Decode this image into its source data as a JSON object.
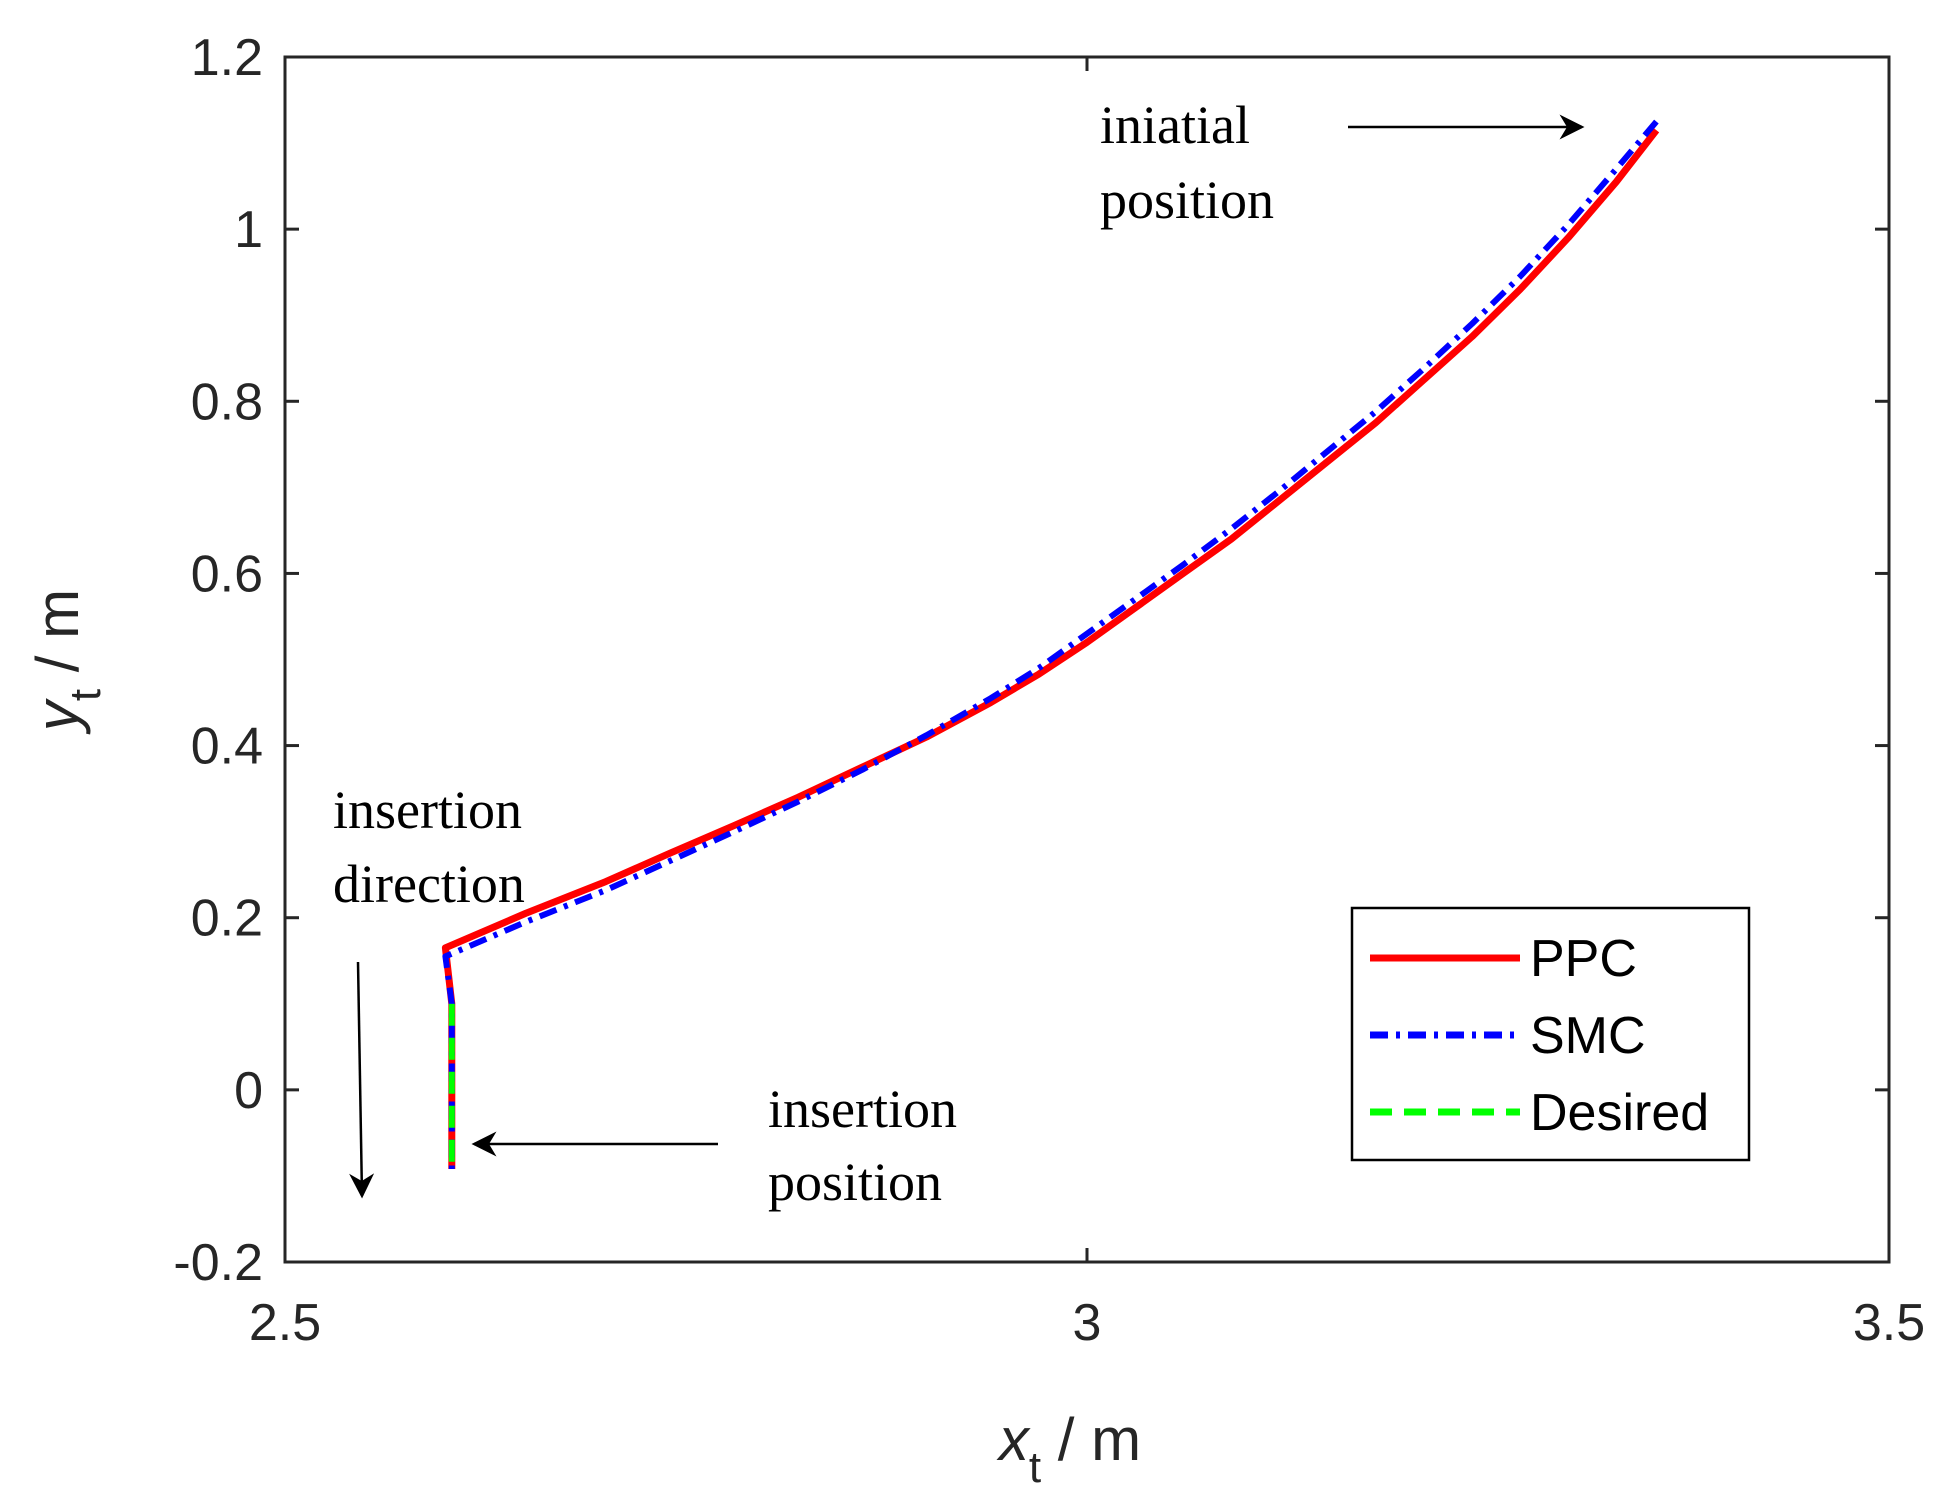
{
  "chart_data": {
    "type": "line",
    "xlabel": {
      "main": "x",
      "sub": "t",
      "unit": " / m"
    },
    "ylabel": {
      "main": "y",
      "sub": "t",
      "unit": " / m"
    },
    "xlim": [
      2.5,
      3.5
    ],
    "ylim": [
      -0.2,
      1.2
    ],
    "xticks": [
      2.5,
      3,
      3.5
    ],
    "xtick_labels": [
      "2.5",
      "3",
      "3.5"
    ],
    "yticks": [
      -0.2,
      0,
      0.2,
      0.4,
      0.6,
      0.8,
      1,
      1.2
    ],
    "ytick_labels": [
      "-0.2",
      "0",
      "0.2",
      "0.4",
      "0.6",
      "0.8",
      "1",
      "1.2"
    ],
    "grid": false,
    "legend_position": "bottom-right",
    "series": [
      {
        "name": "PPC",
        "color": "#ff0000",
        "style": "solid",
        "x": [
          3.355,
          3.33,
          3.3,
          3.27,
          3.24,
          3.21,
          3.18,
          3.15,
          3.12,
          3.09,
          3.06,
          3.03,
          3.0,
          2.97,
          2.94,
          2.9,
          2.86,
          2.82,
          2.78,
          2.74,
          2.7,
          2.65,
          2.6,
          2.604,
          2.604
        ],
        "y": [
          1.115,
          1.055,
          0.99,
          0.93,
          0.875,
          0.825,
          0.775,
          0.73,
          0.685,
          0.64,
          0.6,
          0.56,
          0.52,
          0.483,
          0.45,
          0.41,
          0.375,
          0.34,
          0.307,
          0.275,
          0.242,
          0.205,
          0.165,
          0.1,
          -0.092
        ]
      },
      {
        "name": "SMC",
        "color": "#0000ff",
        "style": "dash-dot",
        "x": [
          3.355,
          3.33,
          3.3,
          3.27,
          3.24,
          3.21,
          3.18,
          3.15,
          3.12,
          3.09,
          3.06,
          3.03,
          3.0,
          2.97,
          2.94,
          2.9,
          2.86,
          2.82,
          2.78,
          2.74,
          2.7,
          2.65,
          2.6,
          2.604,
          2.604
        ],
        "y": [
          1.125,
          1.07,
          1.005,
          0.945,
          0.89,
          0.838,
          0.788,
          0.742,
          0.696,
          0.652,
          0.61,
          0.57,
          0.53,
          0.49,
          0.455,
          0.412,
          0.372,
          0.335,
          0.3,
          0.266,
          0.232,
          0.195,
          0.155,
          0.1,
          -0.092
        ]
      },
      {
        "name": "Desired",
        "color": "#00ff00",
        "style": "dashed",
        "x": [
          2.604,
          2.604
        ],
        "y": [
          0.1,
          -0.092
        ]
      }
    ],
    "annotations": [
      {
        "lines": [
          "iniatial",
          "position"
        ]
      },
      {
        "lines": [
          "insertion",
          "direction"
        ]
      },
      {
        "lines": [
          "insertion",
          "position"
        ]
      }
    ]
  }
}
